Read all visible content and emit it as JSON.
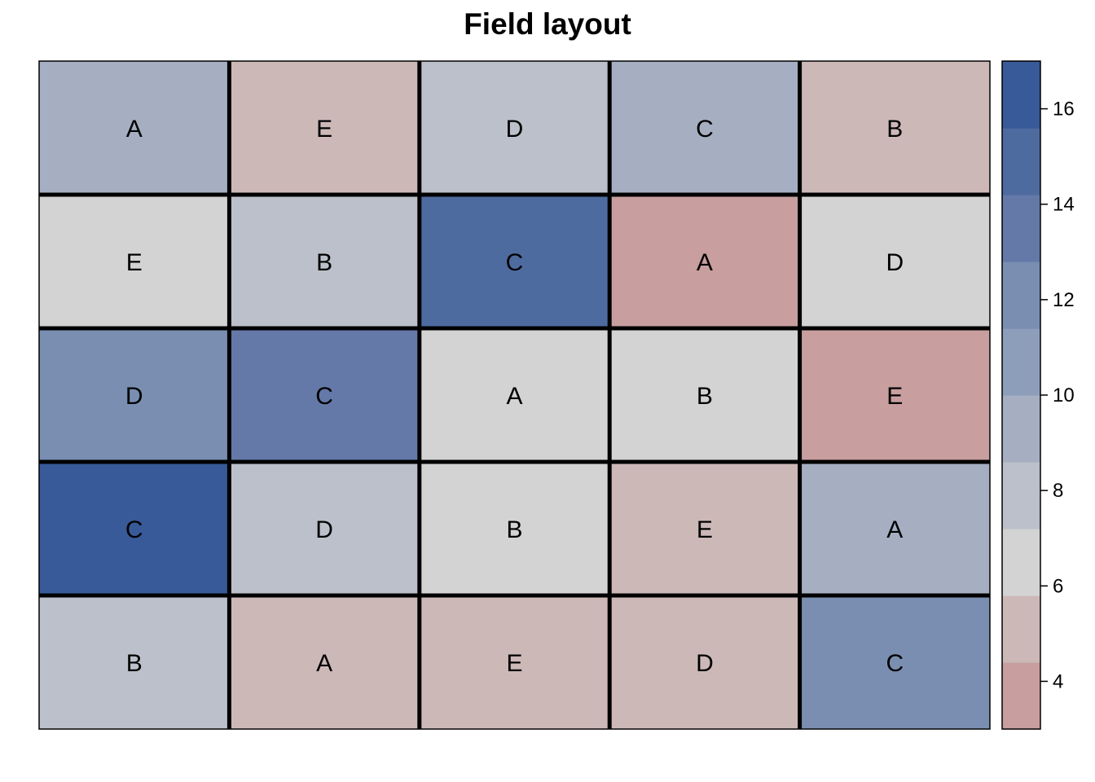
{
  "chart_data": {
    "type": "heatmap",
    "title": "Field layout",
    "xlabel": "",
    "ylabel": "",
    "rows": 5,
    "cols": 5,
    "treatment_labels": [
      [
        "A",
        "E",
        "D",
        "C",
        "B"
      ],
      [
        "E",
        "B",
        "C",
        "A",
        "D"
      ],
      [
        "D",
        "C",
        "A",
        "B",
        "E"
      ],
      [
        "C",
        "D",
        "B",
        "E",
        "A"
      ],
      [
        "B",
        "A",
        "E",
        "D",
        "C"
      ]
    ],
    "values": [
      [
        9,
        5,
        8,
        9,
        5
      ],
      [
        7,
        8,
        15,
        4,
        7
      ],
      [
        12,
        13,
        7,
        7,
        4
      ],
      [
        16,
        8,
        7,
        5,
        9
      ],
      [
        8,
        5,
        5,
        5,
        12
      ]
    ],
    "colorbar": {
      "range": [
        3,
        17
      ],
      "breaks": [
        3,
        4.4,
        5.8,
        7.2,
        8.6,
        10,
        11.4,
        12.8,
        14.2,
        15.6,
        17
      ],
      "colors": [
        "#C89E9E",
        "#CDB8B8",
        "#D3D3D3",
        "#BCC0CA",
        "#A5AFC1",
        "#8D9EBA",
        "#798EB1",
        "#6479A8",
        "#4E6BA0",
        "#385A98"
      ],
      "ticks": [
        4,
        6,
        8,
        10,
        12,
        14,
        16
      ],
      "tick_labels": [
        "4",
        "6",
        "8",
        "10",
        "12",
        "14",
        "16"
      ]
    }
  }
}
